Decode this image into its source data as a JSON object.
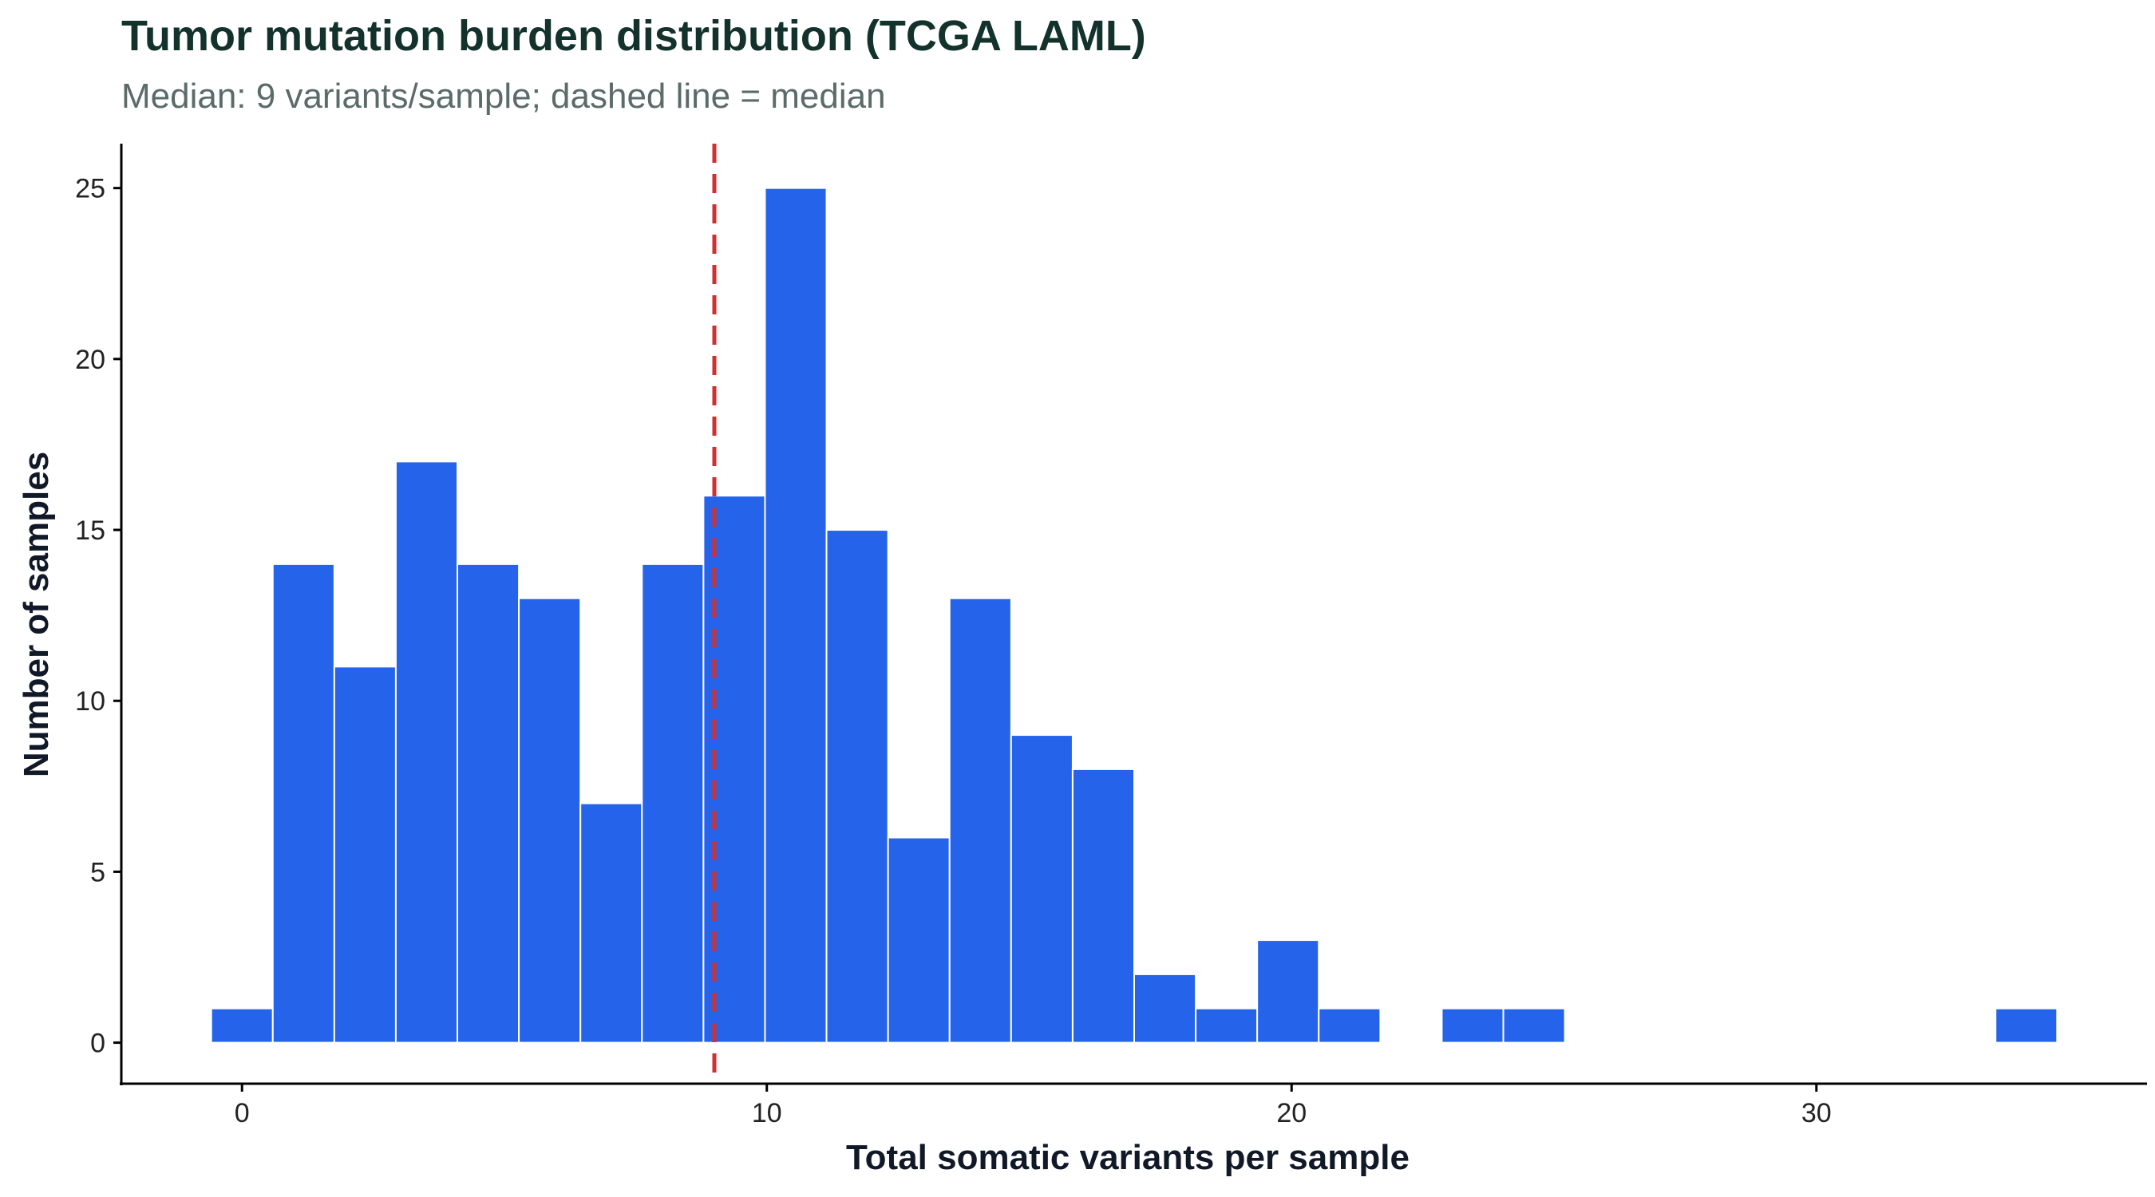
{
  "chart_data": {
    "type": "bar",
    "title": "Tumor mutation burden distribution (TCGA LAML)",
    "subtitle": "Median: 9 variants/sample; dashed line = median",
    "xlabel": "Total somatic variants per sample",
    "ylabel": "Number of samples",
    "bin_centers": [
      0,
      1.1724,
      2.3448,
      3.5172,
      4.6897,
      5.8621,
      7.0345,
      8.2069,
      9.3793,
      10.5517,
      11.7241,
      12.8966,
      14.069,
      15.2414,
      16.4138,
      17.5862,
      18.7586,
      19.931,
      21.1034,
      22.2759,
      23.4483,
      24.6207,
      25.7931,
      26.9655,
      28.1379,
      29.3103,
      30.4828,
      31.6552,
      32.8276,
      34
    ],
    "values": [
      1,
      14,
      11,
      17,
      14,
      13,
      7,
      14,
      16,
      25,
      15,
      6,
      13,
      9,
      8,
      2,
      1,
      3,
      1,
      0,
      1,
      1,
      0,
      0,
      0,
      0,
      0,
      0,
      0,
      1
    ],
    "median": 9,
    "xlim": [
      -2.3,
      36.3
    ],
    "ylim": [
      -1.2,
      26.3
    ],
    "xticks": [
      0,
      10,
      20,
      30
    ],
    "yticks": [
      0,
      5,
      10,
      15,
      20,
      25
    ],
    "bar_color": "#2563eb",
    "bar_edge_color": "#ffffff",
    "median_line_color": "#d32f2f",
    "grid": false,
    "legend": "none"
  }
}
